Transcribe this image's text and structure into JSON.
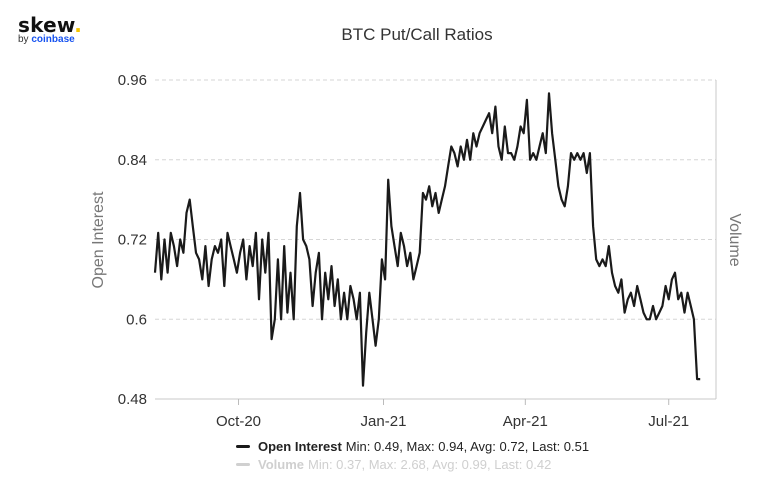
{
  "brand": {
    "name": "skew",
    "sub_prefix": "by",
    "sub_brand": "coinbase"
  },
  "colors": {
    "line": "#1a1a1a",
    "volume": "#d0d0d0",
    "grid": "#d6d6d6"
  },
  "chart_data": {
    "type": "line",
    "title": "BTC Put/Call Ratios",
    "ylabel": "Open Interest",
    "y2label": "Volume",
    "ylim": [
      0.48,
      0.96
    ],
    "yticks": [
      "0.48",
      "0.6",
      "0.72",
      "0.84",
      "0.96"
    ],
    "xrange": [
      "2020-08-09",
      "2021-07-31"
    ],
    "xticks": [
      {
        "date": "2020-10-01",
        "label": "Oct-20"
      },
      {
        "date": "2021-01-01",
        "label": "Jan-21"
      },
      {
        "date": "2021-04-01",
        "label": "Apr-21"
      },
      {
        "date": "2021-07-01",
        "label": "Jul-21"
      }
    ],
    "grid": true,
    "legend_position": "bottom",
    "series": [
      {
        "name": "Open Interest",
        "stats": "Min: 0.49, Max: 0.94, Avg: 0.72, Last: 0.51",
        "points": [
          [
            "2020-08-09",
            0.67
          ],
          [
            "2020-08-11",
            0.73
          ],
          [
            "2020-08-13",
            0.66
          ],
          [
            "2020-08-15",
            0.72
          ],
          [
            "2020-08-17",
            0.67
          ],
          [
            "2020-08-19",
            0.73
          ],
          [
            "2020-08-21",
            0.71
          ],
          [
            "2020-08-23",
            0.68
          ],
          [
            "2020-08-25",
            0.72
          ],
          [
            "2020-08-27",
            0.7
          ],
          [
            "2020-08-29",
            0.76
          ],
          [
            "2020-08-31",
            0.78
          ],
          [
            "2020-09-02",
            0.74
          ],
          [
            "2020-09-04",
            0.7
          ],
          [
            "2020-09-06",
            0.69
          ],
          [
            "2020-09-08",
            0.66
          ],
          [
            "2020-09-10",
            0.71
          ],
          [
            "2020-09-12",
            0.65
          ],
          [
            "2020-09-14",
            0.69
          ],
          [
            "2020-09-16",
            0.71
          ],
          [
            "2020-09-18",
            0.7
          ],
          [
            "2020-09-20",
            0.72
          ],
          [
            "2020-09-22",
            0.65
          ],
          [
            "2020-09-24",
            0.73
          ],
          [
            "2020-09-26",
            0.71
          ],
          [
            "2020-09-28",
            0.69
          ],
          [
            "2020-09-30",
            0.67
          ],
          [
            "2020-10-02",
            0.7
          ],
          [
            "2020-10-04",
            0.72
          ],
          [
            "2020-10-06",
            0.66
          ],
          [
            "2020-10-08",
            0.71
          ],
          [
            "2020-10-10",
            0.68
          ],
          [
            "2020-10-12",
            0.73
          ],
          [
            "2020-10-14",
            0.63
          ],
          [
            "2020-10-16",
            0.72
          ],
          [
            "2020-10-18",
            0.67
          ],
          [
            "2020-10-20",
            0.73
          ],
          [
            "2020-10-22",
            0.57
          ],
          [
            "2020-10-24",
            0.6
          ],
          [
            "2020-10-26",
            0.69
          ],
          [
            "2020-10-28",
            0.6
          ],
          [
            "2020-10-30",
            0.71
          ],
          [
            "2020-11-01",
            0.61
          ],
          [
            "2020-11-03",
            0.67
          ],
          [
            "2020-11-05",
            0.6
          ],
          [
            "2020-11-07",
            0.74
          ],
          [
            "2020-11-09",
            0.79
          ],
          [
            "2020-11-11",
            0.72
          ],
          [
            "2020-11-13",
            0.71
          ],
          [
            "2020-11-15",
            0.69
          ],
          [
            "2020-11-17",
            0.62
          ],
          [
            "2020-11-19",
            0.67
          ],
          [
            "2020-11-21",
            0.7
          ],
          [
            "2020-11-23",
            0.6
          ],
          [
            "2020-11-25",
            0.67
          ],
          [
            "2020-11-27",
            0.63
          ],
          [
            "2020-11-29",
            0.68
          ],
          [
            "2020-12-01",
            0.62
          ],
          [
            "2020-12-03",
            0.66
          ],
          [
            "2020-12-05",
            0.6
          ],
          [
            "2020-12-07",
            0.64
          ],
          [
            "2020-12-09",
            0.6
          ],
          [
            "2020-12-11",
            0.65
          ],
          [
            "2020-12-13",
            0.63
          ],
          [
            "2020-12-15",
            0.6
          ],
          [
            "2020-12-17",
            0.64
          ],
          [
            "2020-12-19",
            0.5
          ],
          [
            "2020-12-21",
            0.58
          ],
          [
            "2020-12-23",
            0.64
          ],
          [
            "2020-12-25",
            0.6
          ],
          [
            "2020-12-27",
            0.56
          ],
          [
            "2020-12-29",
            0.6
          ],
          [
            "2020-12-31",
            0.69
          ],
          [
            "2021-01-02",
            0.66
          ],
          [
            "2021-01-04",
            0.81
          ],
          [
            "2021-01-06",
            0.74
          ],
          [
            "2021-01-08",
            0.71
          ],
          [
            "2021-01-10",
            0.68
          ],
          [
            "2021-01-12",
            0.73
          ],
          [
            "2021-01-14",
            0.71
          ],
          [
            "2021-01-16",
            0.68
          ],
          [
            "2021-01-18",
            0.7
          ],
          [
            "2021-01-20",
            0.66
          ],
          [
            "2021-01-22",
            0.68
          ],
          [
            "2021-01-24",
            0.7
          ],
          [
            "2021-01-26",
            0.79
          ],
          [
            "2021-01-28",
            0.78
          ],
          [
            "2021-01-30",
            0.8
          ],
          [
            "2021-02-01",
            0.77
          ],
          [
            "2021-02-03",
            0.79
          ],
          [
            "2021-02-05",
            0.76
          ],
          [
            "2021-02-07",
            0.78
          ],
          [
            "2021-02-09",
            0.8
          ],
          [
            "2021-02-11",
            0.83
          ],
          [
            "2021-02-13",
            0.86
          ],
          [
            "2021-02-15",
            0.85
          ],
          [
            "2021-02-17",
            0.83
          ],
          [
            "2021-02-19",
            0.86
          ],
          [
            "2021-02-21",
            0.84
          ],
          [
            "2021-02-23",
            0.87
          ],
          [
            "2021-02-25",
            0.84
          ],
          [
            "2021-02-27",
            0.88
          ],
          [
            "2021-03-01",
            0.86
          ],
          [
            "2021-03-03",
            0.88
          ],
          [
            "2021-03-05",
            0.89
          ],
          [
            "2021-03-07",
            0.9
          ],
          [
            "2021-03-09",
            0.91
          ],
          [
            "2021-03-11",
            0.88
          ],
          [
            "2021-03-13",
            0.92
          ],
          [
            "2021-03-15",
            0.86
          ],
          [
            "2021-03-17",
            0.84
          ],
          [
            "2021-03-19",
            0.89
          ],
          [
            "2021-03-21",
            0.85
          ],
          [
            "2021-03-23",
            0.85
          ],
          [
            "2021-03-25",
            0.84
          ],
          [
            "2021-03-27",
            0.86
          ],
          [
            "2021-03-29",
            0.89
          ],
          [
            "2021-03-31",
            0.88
          ],
          [
            "2021-04-02",
            0.93
          ],
          [
            "2021-04-04",
            0.84
          ],
          [
            "2021-04-06",
            0.85
          ],
          [
            "2021-04-08",
            0.84
          ],
          [
            "2021-04-10",
            0.86
          ],
          [
            "2021-04-12",
            0.88
          ],
          [
            "2021-04-14",
            0.85
          ],
          [
            "2021-04-16",
            0.94
          ],
          [
            "2021-04-18",
            0.88
          ],
          [
            "2021-04-20",
            0.84
          ],
          [
            "2021-04-22",
            0.8
          ],
          [
            "2021-04-24",
            0.78
          ],
          [
            "2021-04-26",
            0.77
          ],
          [
            "2021-04-28",
            0.8
          ],
          [
            "2021-04-30",
            0.85
          ],
          [
            "2021-05-02",
            0.84
          ],
          [
            "2021-05-04",
            0.85
          ],
          [
            "2021-05-06",
            0.84
          ],
          [
            "2021-05-08",
            0.85
          ],
          [
            "2021-05-10",
            0.82
          ],
          [
            "2021-05-12",
            0.85
          ],
          [
            "2021-05-14",
            0.74
          ],
          [
            "2021-05-16",
            0.69
          ],
          [
            "2021-05-18",
            0.68
          ],
          [
            "2021-05-20",
            0.69
          ],
          [
            "2021-05-22",
            0.68
          ],
          [
            "2021-05-24",
            0.71
          ],
          [
            "2021-05-26",
            0.67
          ],
          [
            "2021-05-28",
            0.65
          ],
          [
            "2021-05-30",
            0.64
          ],
          [
            "2021-06-01",
            0.66
          ],
          [
            "2021-06-03",
            0.61
          ],
          [
            "2021-06-05",
            0.63
          ],
          [
            "2021-06-07",
            0.64
          ],
          [
            "2021-06-09",
            0.62
          ],
          [
            "2021-06-11",
            0.65
          ],
          [
            "2021-06-13",
            0.63
          ],
          [
            "2021-06-15",
            0.61
          ],
          [
            "2021-06-17",
            0.6
          ],
          [
            "2021-06-19",
            0.6
          ],
          [
            "2021-06-21",
            0.62
          ],
          [
            "2021-06-23",
            0.6
          ],
          [
            "2021-06-25",
            0.61
          ],
          [
            "2021-06-27",
            0.62
          ],
          [
            "2021-06-29",
            0.65
          ],
          [
            "2021-07-01",
            0.63
          ],
          [
            "2021-07-03",
            0.66
          ],
          [
            "2021-07-05",
            0.67
          ],
          [
            "2021-07-07",
            0.63
          ],
          [
            "2021-07-09",
            0.64
          ],
          [
            "2021-07-11",
            0.61
          ],
          [
            "2021-07-13",
            0.64
          ],
          [
            "2021-07-15",
            0.62
          ],
          [
            "2021-07-17",
            0.6
          ],
          [
            "2021-07-19",
            0.51
          ],
          [
            "2021-07-21",
            0.51
          ]
        ]
      },
      {
        "name": "Volume",
        "stats": "Min: 0.37, Max: 2.68, Avg: 0.99, Last: 0.42",
        "hidden": true
      }
    ]
  }
}
